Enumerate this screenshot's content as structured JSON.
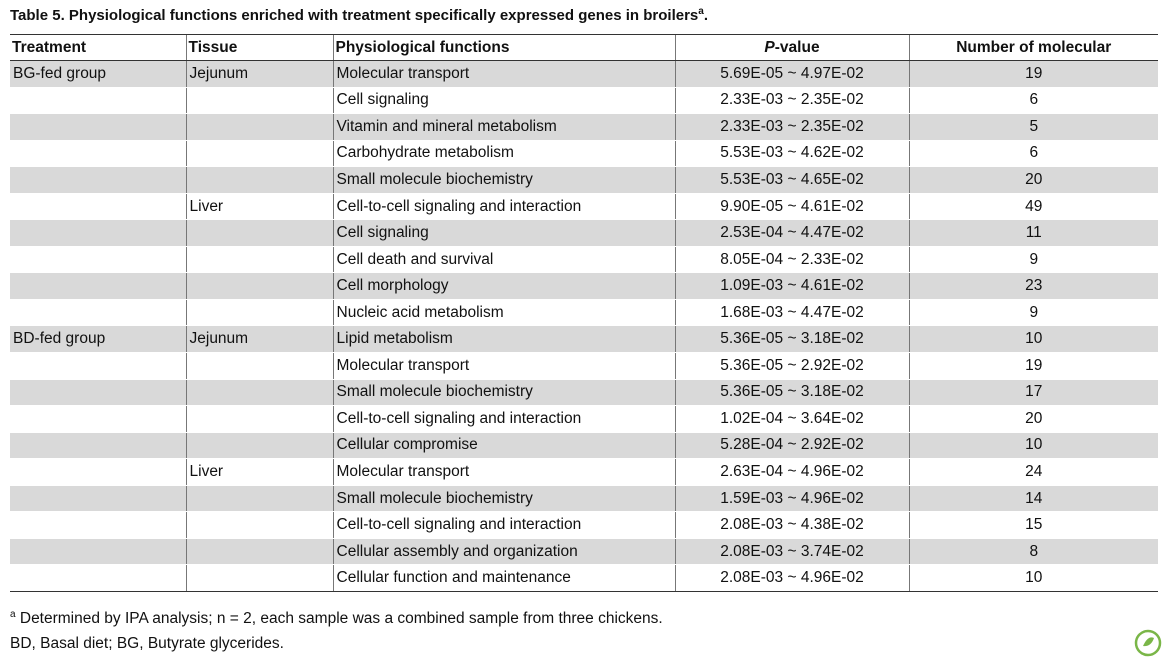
{
  "title": "Table 5.  Physiological functions enriched with treatment specifically expressed genes in broilers",
  "title_sup": "a",
  "title_end": ".",
  "table": {
    "headers": [
      "Treatment",
      "Tissue",
      "Physiological functions",
      {
        "em": "P",
        "rest": "-value"
      },
      "Number of molecular"
    ],
    "rows": [
      [
        "BG-fed group",
        "Jejunum",
        "Molecular transport",
        "5.69E-05 ~ 4.97E-02",
        19
      ],
      [
        null,
        null,
        "Cell signaling",
        "2.33E-03 ~ 2.35E-02",
        6
      ],
      [
        null,
        null,
        "Vitamin and mineral metabolism",
        "2.33E-03 ~ 2.35E-02",
        5
      ],
      [
        null,
        null,
        "Carbohydrate metabolism",
        "5.53E-03 ~ 4.62E-02",
        6
      ],
      [
        null,
        null,
        "Small molecule biochemistry",
        "5.53E-03 ~ 4.65E-02",
        20
      ],
      [
        null,
        "Liver",
        "Cell-to-cell signaling and interaction",
        "9.90E-05 ~ 4.61E-02",
        49
      ],
      [
        null,
        null,
        "Cell signaling",
        "2.53E-04 ~ 4.47E-02",
        11
      ],
      [
        null,
        null,
        "Cell death and survival",
        "8.05E-04 ~ 2.33E-02",
        9
      ],
      [
        null,
        null,
        "Cell morphology",
        "1.09E-03 ~ 4.61E-02",
        23
      ],
      [
        null,
        null,
        "Nucleic acid metabolism",
        "1.68E-03 ~ 4.47E-02",
        9
      ],
      [
        "BD-fed group",
        "Jejunum",
        "Lipid metabolism",
        "5.36E-05 ~ 3.18E-02",
        10
      ],
      [
        null,
        null,
        "Molecular transport",
        "5.36E-05 ~ 2.92E-02",
        19
      ],
      [
        null,
        null,
        "Small molecule biochemistry",
        "5.36E-05 ~ 3.18E-02",
        17
      ],
      [
        null,
        null,
        "Cell-to-cell signaling and interaction",
        "1.02E-04 ~ 3.64E-02",
        20
      ],
      [
        null,
        null,
        "Cellular compromise",
        "5.28E-04 ~ 2.92E-02",
        10
      ],
      [
        null,
        "Liver",
        "Molecular transport",
        "2.63E-04 ~ 4.96E-02",
        24
      ],
      [
        null,
        null,
        "Small molecule biochemistry",
        "1.59E-03 ~ 4.96E-02",
        14
      ],
      [
        null,
        null,
        "Cell-to-cell signaling and interaction",
        "2.08E-03 ~ 4.38E-02",
        15
      ],
      [
        null,
        null,
        "Cellular assembly and organization",
        "2.08E-03 ~ 3.74E-02",
        8
      ],
      [
        null,
        null,
        "Cellular function and maintenance",
        "2.08E-03 ~ 4.96E-02",
        10
      ]
    ]
  },
  "footnotes": [
    {
      "sup": "a",
      "text": " Determined by IPA analysis; n = 2, each sample was a combined sample from three chickens."
    },
    {
      "text": "BD, Basal diet; BG, Butyrate glycerides."
    }
  ]
}
